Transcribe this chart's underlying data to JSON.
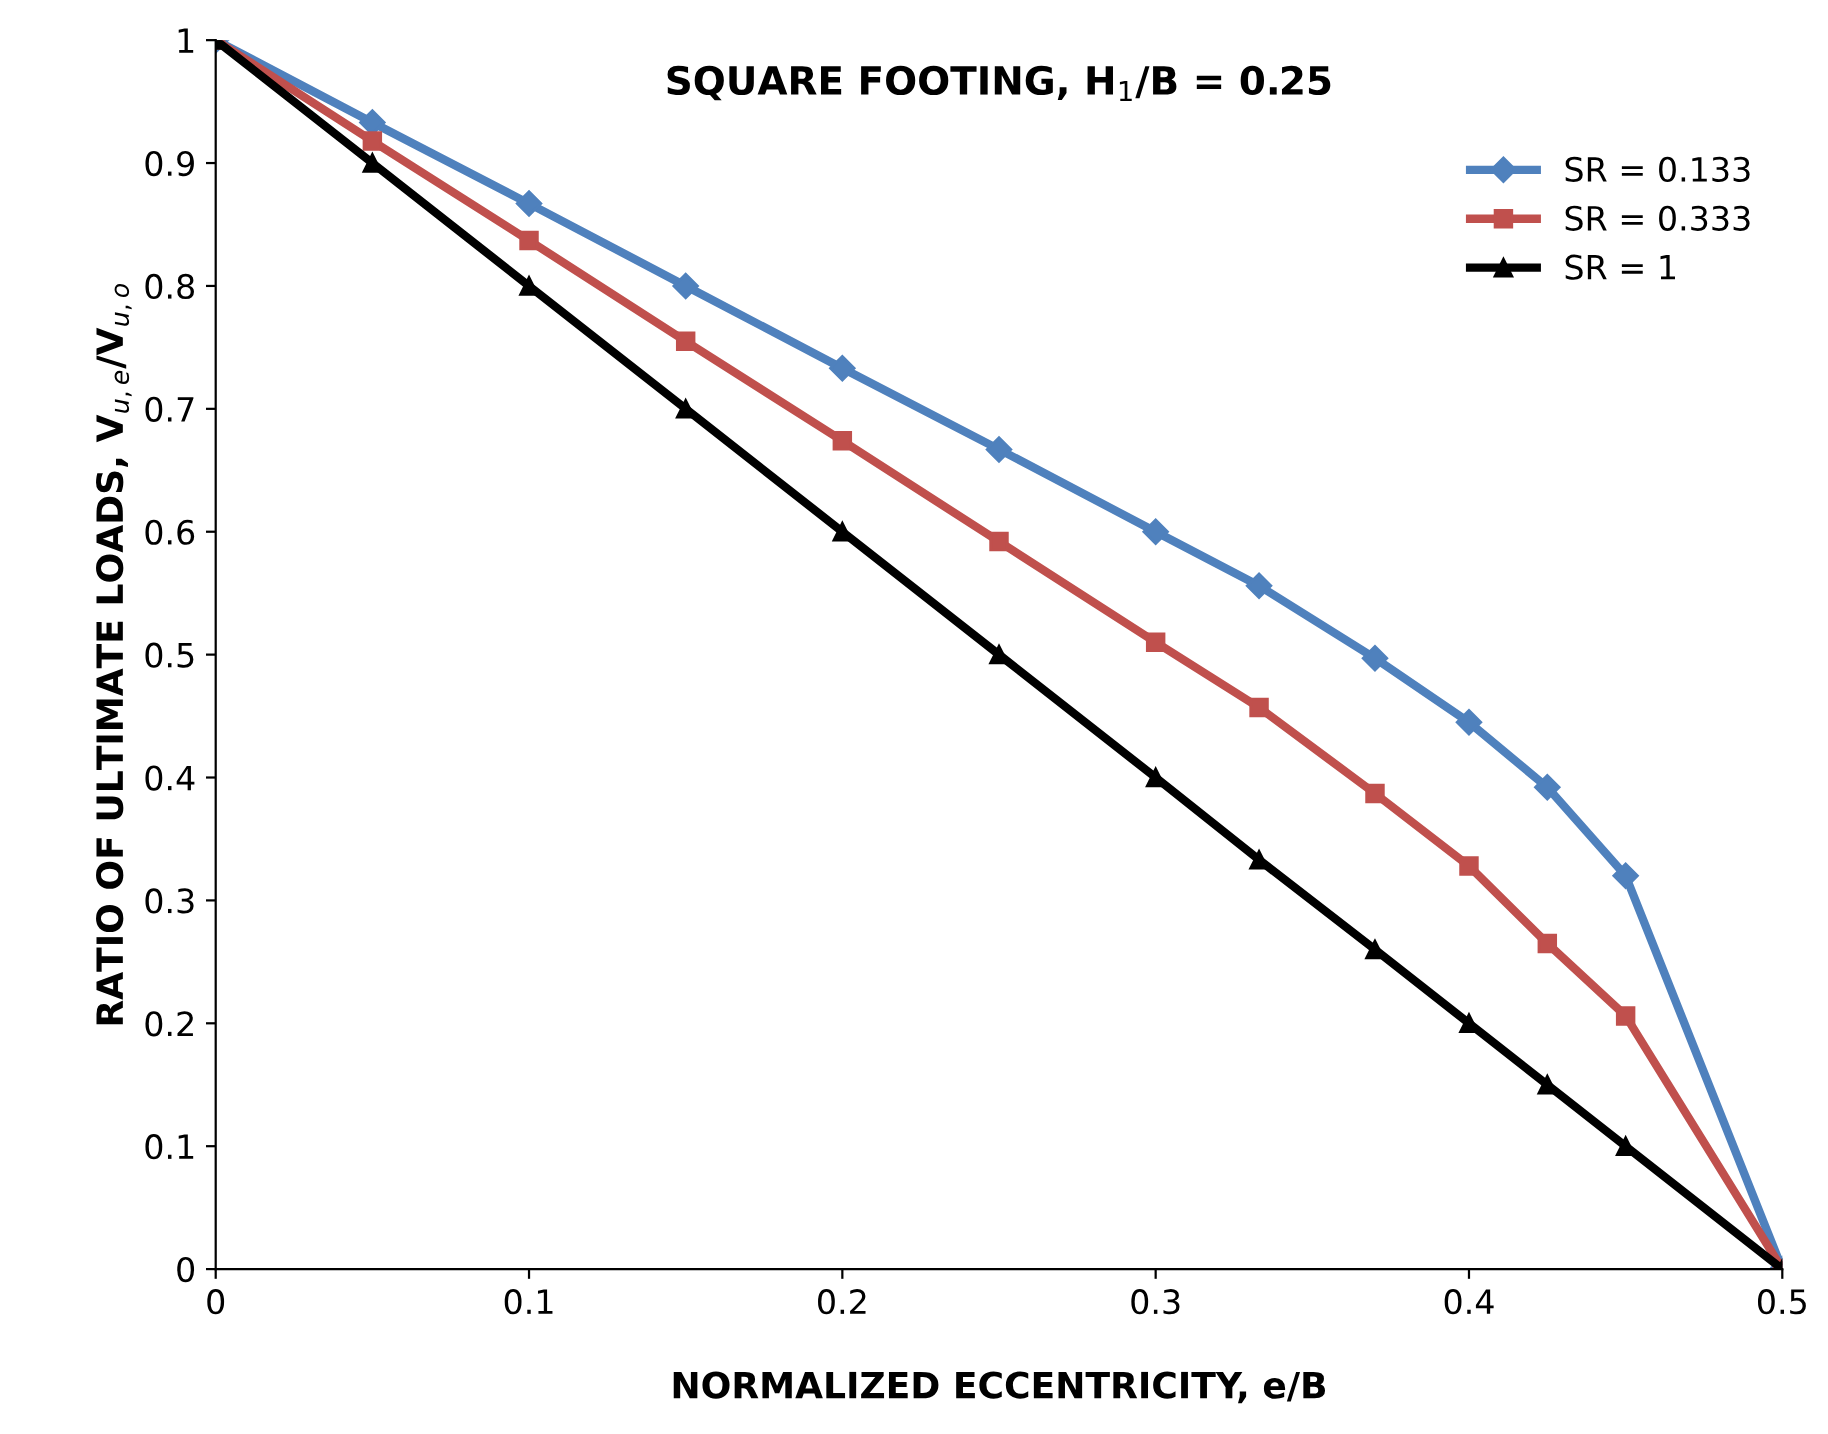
{
  "chart_data": {
    "type": "line",
    "title": "SQUARE FOOTING, H$_{1}$/B = 0.25",
    "xlabel": "NORMALIZED ECCENTRICITY, e/B",
    "ylabel": "RATIO OF ULTIMATE LOADS, V$_{u,e}$/V$_{u,o}$",
    "x": [
      0,
      0.05,
      0.1,
      0.15,
      0.2,
      0.25,
      0.3,
      0.333,
      0.37,
      0.4,
      0.425,
      0.45,
      0.5
    ],
    "series": [
      {
        "name": "SR = 0.133",
        "color": "#4f81bd",
        "marker": "diamond",
        "values": [
          1,
          0.933,
          0.867,
          0.8,
          0.733,
          0.667,
          0.6,
          0.556,
          0.497,
          0.445,
          0.392,
          0.32,
          0
        ]
      },
      {
        "name": "SR = 0.333",
        "color": "#c0504d",
        "marker": "square",
        "values": [
          1,
          0.918,
          0.837,
          0.755,
          0.674,
          0.592,
          0.51,
          0.457,
          0.387,
          0.328,
          0.265,
          0.206,
          0
        ]
      },
      {
        "name": "SR = 1",
        "color": "#000000",
        "marker": "triangle",
        "values": [
          1,
          0.9,
          0.8,
          0.7,
          0.6,
          0.5,
          0.4,
          0.333,
          0.26,
          0.2,
          0.15,
          0.1,
          0
        ]
      }
    ],
    "xlim": [
      0,
      0.5
    ],
    "xticks": [
      0,
      0.1,
      0.2,
      0.3,
      0.4,
      0.5
    ],
    "ylim": [
      0,
      1
    ],
    "yticks": [
      0,
      0.1,
      0.2,
      0.3,
      0.4,
      0.5,
      0.6,
      0.7,
      0.8,
      0.9,
      1
    ],
    "grid": false,
    "legend": "top right",
    "line_style": "solid"
  }
}
